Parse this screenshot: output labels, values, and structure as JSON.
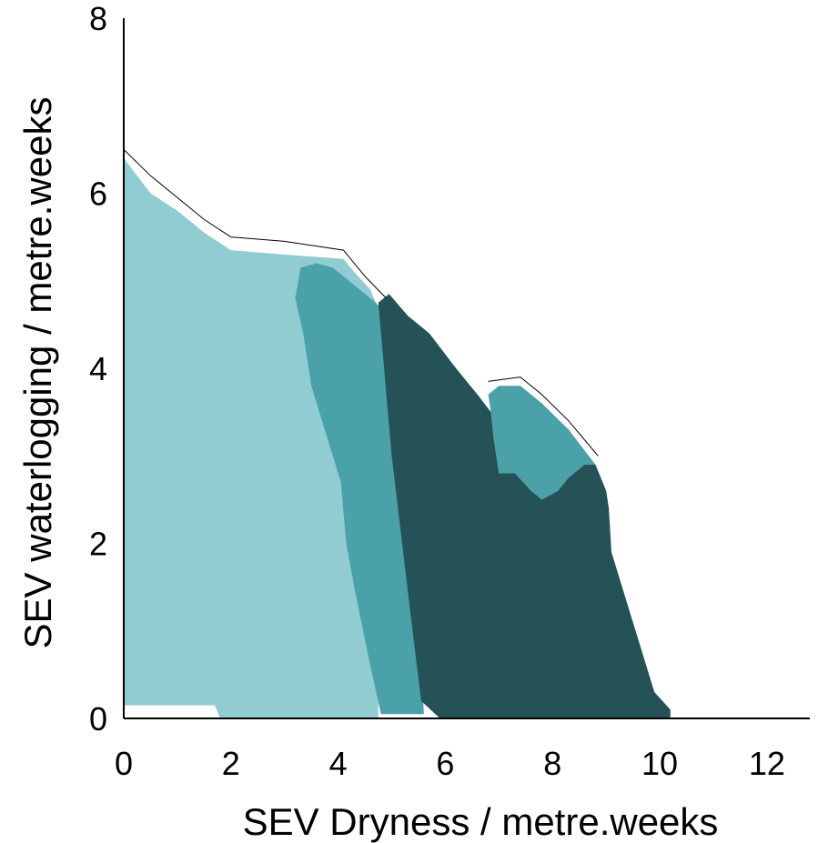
{
  "chart_data": {
    "type": "area",
    "title": "",
    "xlabel": "SEV Dryness / metre.weeks",
    "ylabel": "SEV waterlogging / metre.weeks",
    "xlim": [
      0,
      12.8
    ],
    "ylim": [
      0,
      8
    ],
    "xticks": [
      0,
      2,
      4,
      6,
      8,
      10,
      12
    ],
    "yticks": [
      0,
      2,
      4,
      6,
      8
    ],
    "grid": false,
    "legend": "none",
    "series": [
      {
        "color": "#91CCD3",
        "polygon": [
          [
            0.0,
            6.4
          ],
          [
            0.5,
            6.0
          ],
          [
            1.0,
            5.8
          ],
          [
            1.5,
            5.55
          ],
          [
            2.0,
            5.35
          ],
          [
            3.0,
            5.3
          ],
          [
            4.1,
            5.25
          ],
          [
            4.3,
            5.1
          ],
          [
            4.6,
            4.9
          ],
          [
            4.7,
            4.75
          ],
          [
            4.75,
            0
          ],
          [
            1.8,
            0
          ],
          [
            1.7,
            0.15
          ],
          [
            0.0,
            0.15
          ]
        ]
      },
      {
        "color": "#4AA1A8",
        "polygon": [
          [
            3.3,
            5.15
          ],
          [
            3.6,
            5.2
          ],
          [
            3.9,
            5.15
          ],
          [
            4.2,
            5.0
          ],
          [
            4.7,
            4.75
          ],
          [
            5.0,
            4.55
          ],
          [
            5.2,
            4.5
          ],
          [
            5.6,
            0.05
          ],
          [
            4.8,
            0.05
          ],
          [
            4.6,
            0.6
          ],
          [
            4.3,
            1.5
          ],
          [
            4.15,
            2.0
          ],
          [
            4.05,
            2.7
          ],
          [
            3.8,
            3.2
          ],
          [
            3.5,
            3.8
          ],
          [
            3.35,
            4.4
          ],
          [
            3.2,
            4.8
          ]
        ]
      },
      {
        "color": "#4AA1A8",
        "polygon": [
          [
            6.8,
            3.7
          ],
          [
            7.0,
            3.8
          ],
          [
            7.4,
            3.8
          ],
          [
            7.8,
            3.6
          ],
          [
            8.3,
            3.3
          ],
          [
            8.8,
            2.9
          ],
          [
            8.6,
            2.9
          ],
          [
            8.3,
            2.75
          ],
          [
            8.1,
            2.6
          ],
          [
            7.8,
            2.5
          ],
          [
            7.6,
            2.6
          ],
          [
            7.3,
            2.8
          ],
          [
            7.0,
            2.8
          ],
          [
            6.9,
            3.2
          ],
          [
            6.85,
            3.5
          ]
        ]
      },
      {
        "color": "#245256",
        "polygon": [
          [
            4.75,
            4.75
          ],
          [
            4.95,
            4.85
          ],
          [
            5.3,
            4.6
          ],
          [
            5.7,
            4.4
          ],
          [
            6.2,
            4.0
          ],
          [
            6.6,
            3.7
          ],
          [
            6.85,
            3.5
          ],
          [
            6.9,
            3.2
          ],
          [
            7.0,
            2.8
          ],
          [
            7.3,
            2.8
          ],
          [
            7.6,
            2.6
          ],
          [
            7.8,
            2.5
          ],
          [
            8.1,
            2.6
          ],
          [
            8.3,
            2.75
          ],
          [
            8.6,
            2.9
          ],
          [
            8.8,
            2.9
          ],
          [
            9.0,
            2.6
          ],
          [
            9.05,
            2.4
          ],
          [
            9.1,
            1.9
          ],
          [
            9.3,
            1.5
          ],
          [
            9.5,
            1.1
          ],
          [
            9.7,
            0.7
          ],
          [
            9.9,
            0.3
          ],
          [
            10.2,
            0.1
          ],
          [
            10.2,
            0
          ],
          [
            5.9,
            0
          ],
          [
            5.55,
            0.2
          ],
          [
            5.35,
            1.2
          ],
          [
            5.0,
            3.0
          ]
        ]
      }
    ]
  }
}
